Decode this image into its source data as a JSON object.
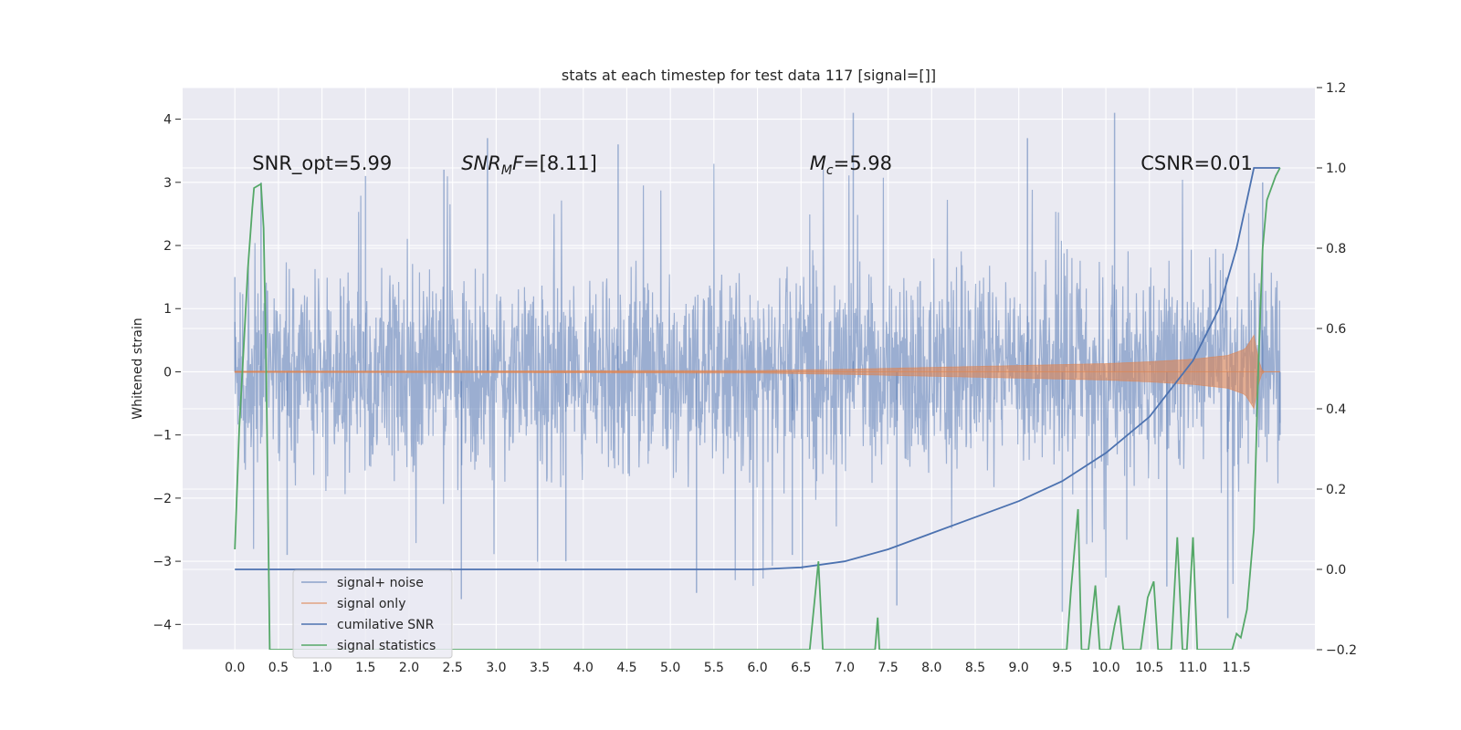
{
  "chart_data": {
    "type": "line",
    "title": "stats at each timestep for test data 117 [signal=[]]",
    "ylabel": "Whitened strain",
    "xlim": [
      -0.6,
      12.4
    ],
    "ylim": [
      -4.4,
      4.5
    ],
    "y2lim": [
      -0.2,
      1.2
    ],
    "grid": true,
    "legend_position": "lower-left",
    "x_ticks": [
      "0.0",
      "0.5",
      "1.0",
      "1.5",
      "2.0",
      "2.5",
      "3.0",
      "3.5",
      "4.0",
      "4.5",
      "5.0",
      "5.5",
      "6.0",
      "6.5",
      "7.0",
      "7.5",
      "8.0",
      "8.5",
      "9.0",
      "9.5",
      "10.0",
      "10.5",
      "11.0",
      "11.5"
    ],
    "y_ticks": [
      "4",
      "3",
      "2",
      "1",
      "0",
      "−1",
      "−2",
      "−3",
      "−4"
    ],
    "y2_ticks": [
      "1.2",
      "1.0",
      "0.8",
      "0.6",
      "0.4",
      "0.2",
      "0.0",
      "−0.2"
    ],
    "annotations": [
      {
        "label": "SNR_opt=5.99",
        "x": 0.2,
        "y": 3.3
      },
      {
        "label": "SNR_MF=[8.11]",
        "main": "SNR",
        "sub": "M",
        "tail": "F=[8.11]",
        "x": 2.6,
        "y": 3.3
      },
      {
        "label": "M_c=5.98",
        "main": "M",
        "sub": "c",
        "tail": "=5.98",
        "x": 6.6,
        "y": 3.3
      },
      {
        "label": "CSNR=0.01",
        "x": 10.4,
        "y": 3.3
      }
    ],
    "series": [
      {
        "name": "signal+ noise",
        "color": "#4c72b0",
        "opacity": 0.5,
        "axis": "left",
        "x_range": [
          0.0,
          12.0
        ],
        "envelope_typical": [
          -1.8,
          1.8
        ],
        "envelope_peak": [
          -3.8,
          4.1
        ],
        "points": [
          [
            0.0,
            1.5
          ],
          [
            0.3,
            3.0
          ],
          [
            0.6,
            -2.9
          ],
          [
            1.5,
            3.1
          ],
          [
            2.4,
            3.2
          ],
          [
            2.6,
            -3.6
          ],
          [
            2.9,
            3.7
          ],
          [
            3.8,
            -3.0
          ],
          [
            4.4,
            3.6
          ],
          [
            5.3,
            -3.5
          ],
          [
            6.4,
            -2.9
          ],
          [
            7.1,
            4.1
          ],
          [
            7.6,
            -3.7
          ],
          [
            9.1,
            3.7
          ],
          [
            9.5,
            -3.8
          ],
          [
            10.1,
            4.1
          ],
          [
            10.7,
            -3.4
          ],
          [
            11.4,
            -3.9
          ],
          [
            11.8,
            3.0
          ],
          [
            12.0,
            -1.0
          ]
        ]
      },
      {
        "name": "signal only",
        "color": "#dd8452",
        "axis": "left",
        "x_range": [
          0.0,
          12.0
        ],
        "envelope": [
          [
            0.0,
            0.01
          ],
          [
            6.0,
            0.02
          ],
          [
            7.0,
            0.04
          ],
          [
            8.0,
            0.07
          ],
          [
            9.0,
            0.1
          ],
          [
            10.0,
            0.13
          ],
          [
            10.5,
            0.16
          ],
          [
            11.0,
            0.2
          ],
          [
            11.4,
            0.26
          ],
          [
            11.6,
            0.36
          ],
          [
            11.7,
            0.58
          ],
          [
            11.75,
            0.2
          ],
          [
            11.8,
            0.0
          ],
          [
            12.0,
            0.0
          ]
        ]
      },
      {
        "name": "cumilative SNR",
        "color": "#4c72b0",
        "axis": "right",
        "points": [
          [
            0.0,
            0.0
          ],
          [
            6.0,
            0.0
          ],
          [
            6.5,
            0.005
          ],
          [
            7.0,
            0.02
          ],
          [
            7.5,
            0.05
          ],
          [
            8.0,
            0.09
          ],
          [
            8.5,
            0.13
          ],
          [
            9.0,
            0.17
          ],
          [
            9.5,
            0.22
          ],
          [
            10.0,
            0.29
          ],
          [
            10.5,
            0.38
          ],
          [
            11.0,
            0.52
          ],
          [
            11.3,
            0.65
          ],
          [
            11.5,
            0.8
          ],
          [
            11.6,
            0.9
          ],
          [
            11.7,
            1.0
          ],
          [
            12.0,
            1.0
          ]
        ]
      },
      {
        "name": "signal statistics",
        "color": "#55a868",
        "axis": "right",
        "points": [
          [
            0.0,
            0.05
          ],
          [
            0.05,
            0.35
          ],
          [
            0.1,
            0.55
          ],
          [
            0.15,
            0.75
          ],
          [
            0.2,
            0.9
          ],
          [
            0.22,
            0.95
          ],
          [
            0.3,
            0.96
          ],
          [
            0.33,
            0.85
          ],
          [
            0.36,
            0.5
          ],
          [
            0.4,
            -0.2
          ],
          [
            6.6,
            -0.2
          ],
          [
            6.7,
            0.02
          ],
          [
            6.75,
            -0.2
          ],
          [
            7.35,
            -0.2
          ],
          [
            7.38,
            -0.12
          ],
          [
            7.4,
            -0.2
          ],
          [
            9.55,
            -0.2
          ],
          [
            9.6,
            -0.05
          ],
          [
            9.68,
            0.15
          ],
          [
            9.72,
            -0.2
          ],
          [
            9.8,
            -0.2
          ],
          [
            9.88,
            -0.04
          ],
          [
            9.93,
            -0.2
          ],
          [
            10.05,
            -0.2
          ],
          [
            10.1,
            -0.14
          ],
          [
            10.15,
            -0.09
          ],
          [
            10.2,
            -0.2
          ],
          [
            10.4,
            -0.2
          ],
          [
            10.48,
            -0.07
          ],
          [
            10.55,
            -0.03
          ],
          [
            10.6,
            -0.2
          ],
          [
            10.75,
            -0.2
          ],
          [
            10.82,
            0.08
          ],
          [
            10.88,
            -0.2
          ],
          [
            10.93,
            -0.2
          ],
          [
            11.0,
            0.08
          ],
          [
            11.05,
            -0.2
          ],
          [
            11.45,
            -0.2
          ],
          [
            11.5,
            -0.16
          ],
          [
            11.55,
            -0.17
          ],
          [
            11.62,
            -0.1
          ],
          [
            11.7,
            0.1
          ],
          [
            11.75,
            0.5
          ],
          [
            11.8,
            0.8
          ],
          [
            11.85,
            0.92
          ],
          [
            11.9,
            0.95
          ],
          [
            11.95,
            0.98
          ],
          [
            12.0,
            1.0
          ]
        ]
      }
    ]
  }
}
